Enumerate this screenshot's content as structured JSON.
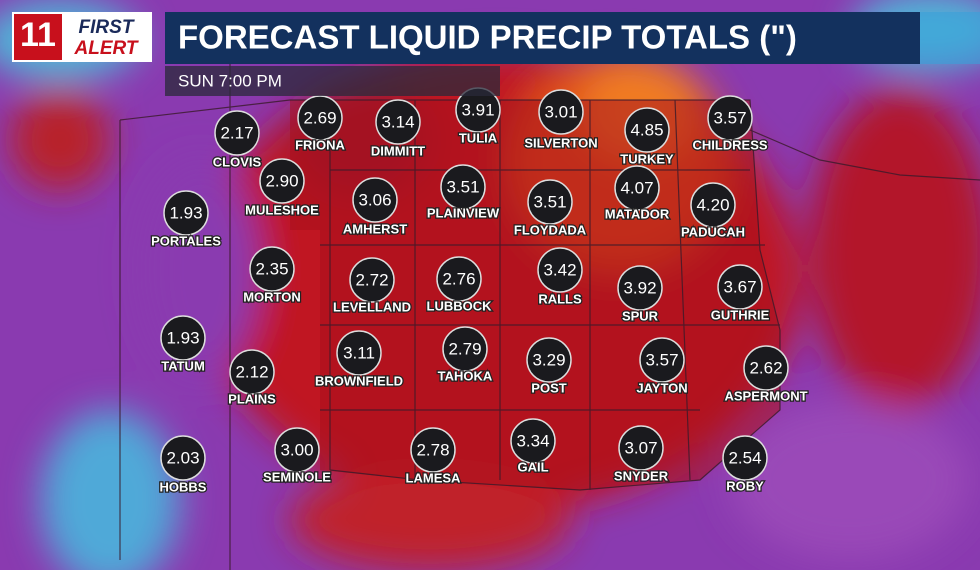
{
  "header": {
    "logo": {
      "channel": "11",
      "brand_top": "FIRST",
      "brand_bottom": "ALERT"
    },
    "title": "FORECAST LIQUID PRECIP TOTALS (\")",
    "time": "SUN 7:00 PM"
  },
  "cities": [
    {
      "name": "CLOVIS",
      "value": "2.17"
    },
    {
      "name": "FRIONA",
      "value": "2.69"
    },
    {
      "name": "DIMMITT",
      "value": "3.14"
    },
    {
      "name": "TULIA",
      "value": "3.91"
    },
    {
      "name": "SILVERTON",
      "value": "3.01"
    },
    {
      "name": "TURKEY",
      "value": "4.85"
    },
    {
      "name": "CHILDRESS",
      "value": "3.57"
    },
    {
      "name": "MULESHOE",
      "value": "2.90"
    },
    {
      "name": "PORTALES",
      "value": "1.93"
    },
    {
      "name": "AMHERST",
      "value": "3.06"
    },
    {
      "name": "PLAINVIEW",
      "value": "3.51"
    },
    {
      "name": "FLOYDADA",
      "value": "3.51"
    },
    {
      "name": "MATADOR",
      "value": "4.07"
    },
    {
      "name": "PADUCAH",
      "value": "4.20"
    },
    {
      "name": "MORTON",
      "value": "2.35"
    },
    {
      "name": "LEVELLAND",
      "value": "2.72"
    },
    {
      "name": "LUBBOCK",
      "value": "2.76"
    },
    {
      "name": "RALLS",
      "value": "3.42"
    },
    {
      "name": "SPUR",
      "value": "3.92"
    },
    {
      "name": "GUTHRIE",
      "value": "3.67"
    },
    {
      "name": "TATUM",
      "value": "1.93"
    },
    {
      "name": "PLAINS",
      "value": "2.12"
    },
    {
      "name": "BROWNFIELD",
      "value": "3.11"
    },
    {
      "name": "TAHOKA",
      "value": "2.79"
    },
    {
      "name": "POST",
      "value": "3.29"
    },
    {
      "name": "JAYTON",
      "value": "3.57"
    },
    {
      "name": "ASPERMONT",
      "value": "2.62"
    },
    {
      "name": "HOBBS",
      "value": "2.03"
    },
    {
      "name": "SEMINOLE",
      "value": "3.00"
    },
    {
      "name": "LAMESA",
      "value": "2.78"
    },
    {
      "name": "GAIL",
      "value": "3.34"
    },
    {
      "name": "SNYDER",
      "value": "3.07"
    },
    {
      "name": "ROBY",
      "value": "2.54"
    }
  ]
}
